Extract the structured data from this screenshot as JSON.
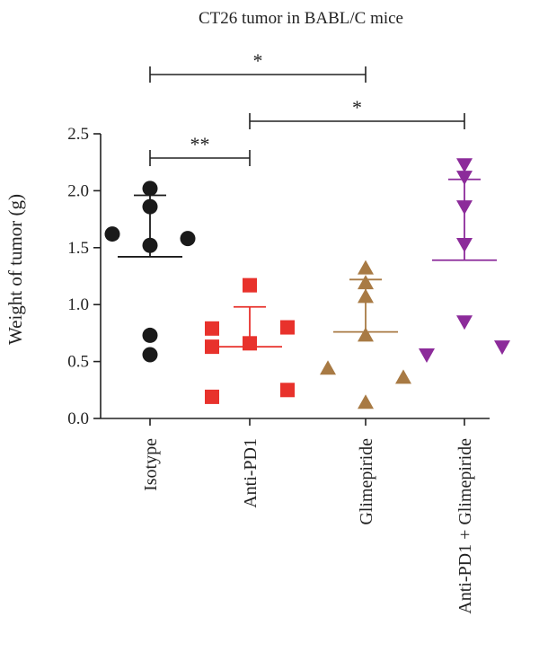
{
  "chart_data": {
    "type": "scatter",
    "title": "CT26 tumor in BABL/C mice",
    "ylabel": "Weight of tumor (g)",
    "xlabel": "",
    "ylim": [
      0,
      2.5
    ],
    "yticks": [
      "0.0",
      "0.5",
      "1.0",
      "1.5",
      "2.0",
      "2.5"
    ],
    "grid": false,
    "categories": [
      "Isotype",
      "Anti-PD1",
      "Glimepiride",
      "Anti-PD1 + Glimepiride"
    ],
    "groups": [
      {
        "category": "Isotype",
        "marker": "circle",
        "color": "#1a1a1a",
        "points": [
          {
            "offset": 0,
            "value": 2.02
          },
          {
            "offset": 0,
            "value": 1.86
          },
          {
            "offset": -1,
            "value": 1.62
          },
          {
            "offset": 0,
            "value": 1.52
          },
          {
            "offset": 1,
            "value": 1.58
          },
          {
            "offset": 0,
            "value": 0.73
          },
          {
            "offset": 0,
            "value": 0.56
          }
        ],
        "mean": 1.42,
        "sd_upper": 1.96
      },
      {
        "category": "Anti-PD1",
        "marker": "square",
        "color": "#e8322c",
        "points": [
          {
            "offset": 0,
            "value": 1.17
          },
          {
            "offset": -1,
            "value": 0.79
          },
          {
            "offset": 1,
            "value": 0.8
          },
          {
            "offset": 0,
            "value": 0.66
          },
          {
            "offset": -1,
            "value": 0.63
          },
          {
            "offset": 1,
            "value": 0.25
          },
          {
            "offset": -1,
            "value": 0.19
          }
        ],
        "mean": 0.63,
        "sd_upper": 0.98
      },
      {
        "category": "Glimepiride",
        "marker": "triangle-up",
        "color": "#a87a44",
        "points": [
          {
            "offset": 0,
            "value": 1.32
          },
          {
            "offset": 0,
            "value": 1.19
          },
          {
            "offset": 0,
            "value": 1.07
          },
          {
            "offset": 0,
            "value": 0.73
          },
          {
            "offset": -1,
            "value": 0.44
          },
          {
            "offset": 1,
            "value": 0.36
          },
          {
            "offset": 0,
            "value": 0.14
          }
        ],
        "mean": 0.76,
        "sd_upper": 1.22
      },
      {
        "category": "Anti-PD1 + Glimepiride",
        "marker": "triangle-down",
        "color": "#8c2b9a",
        "points": [
          {
            "offset": 0,
            "value": 2.23
          },
          {
            "offset": 0,
            "value": 2.12
          },
          {
            "offset": 0,
            "value": 1.86
          },
          {
            "offset": 0,
            "value": 1.53
          },
          {
            "offset": 0,
            "value": 0.85
          },
          {
            "offset": -1,
            "value": 0.56
          },
          {
            "offset": 1,
            "value": 0.63
          }
        ],
        "mean": 1.39,
        "sd_upper": 2.1
      }
    ],
    "significance": [
      {
        "from": "Isotype",
        "to": "Glimepiride",
        "label": "*"
      },
      {
        "from": "Anti-PD1",
        "to": "Anti-PD1 + Glimepiride",
        "label": "*"
      },
      {
        "from": "Isotype",
        "to": "Anti-PD1",
        "label": "**"
      }
    ]
  }
}
